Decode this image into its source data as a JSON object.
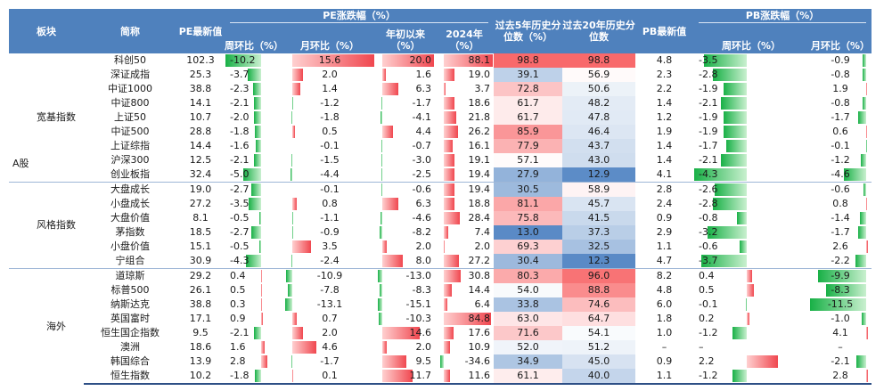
{
  "header": {
    "group_label": "板块",
    "name_label": "简称",
    "pe_latest": "PE最新值",
    "pe_change_group": "PE涨跌幅（%）",
    "pe_wow": "周环比（%）",
    "pe_mom": "月环比（%）",
    "pe_ytd": "年初以来（%）",
    "pe_2024": "2024年（%）",
    "pct_5y": "过去5年历史分位数（%）",
    "pct_20y": "过去20年历史分位数",
    "pb_latest": "PB最新值",
    "pb_change_group": "PB涨跌幅（%）",
    "pb_wow": "周环比（%）",
    "pb_mom": "月环比（%）"
  },
  "market_label": "A股",
  "groups": [
    "宽基指数",
    "风格指数",
    "海外"
  ],
  "rows": [
    {
      "group": 0,
      "name": "科创50",
      "pe": "102.3",
      "wow": -10.2,
      "mom": 15.6,
      "ytd": 20.0,
      "y2024": 88.1,
      "p5": 98.8,
      "p20": 98.8,
      "pb": "4.8",
      "pbw": -3.5,
      "pbm": -0.9
    },
    {
      "group": 0,
      "name": "深证成指",
      "pe": "25.3",
      "wow": -3.7,
      "mom": 2.0,
      "ytd": 1.6,
      "y2024": 19.0,
      "p5": 39.1,
      "p20": 56.9,
      "pb": "2.3",
      "pbw": -2.8,
      "pbm": -0.8
    },
    {
      "group": 0,
      "name": "中证1000",
      "pe": "38.8",
      "wow": -2.3,
      "mom": 1.4,
      "ytd": 6.3,
      "y2024": 3.7,
      "p5": 72.8,
      "p20": 50.6,
      "pb": "2.2",
      "pbw": -1.9,
      "pbm": 1.9
    },
    {
      "group": 0,
      "name": "中证800",
      "pe": "14.1",
      "wow": -2.1,
      "mom": -1.2,
      "ytd": -1.7,
      "y2024": 18.6,
      "p5": 61.7,
      "p20": 48.2,
      "pb": "1.4",
      "pbw": -2.1,
      "pbm": -0.8
    },
    {
      "group": 0,
      "name": "上证50",
      "pe": "10.7",
      "wow": -2.0,
      "mom": -1.8,
      "ytd": -4.1,
      "y2024": 21.8,
      "p5": 61.7,
      "p20": 47.8,
      "pb": "1.2",
      "pbw": -1.9,
      "pbm": -1.7
    },
    {
      "group": 0,
      "name": "中证500",
      "pe": "28.8",
      "wow": -1.8,
      "mom": 0.5,
      "ytd": 4.4,
      "y2024": 26.2,
      "p5": 85.9,
      "p20": 46.4,
      "pb": "1.9",
      "pbw": -1.9,
      "pbm": 0.6
    },
    {
      "group": 0,
      "name": "上证综指",
      "pe": "14.4",
      "wow": -1.6,
      "mom": -0.1,
      "ytd": -0.7,
      "y2024": 16.1,
      "p5": 77.9,
      "p20": 43.7,
      "pb": "1.4",
      "pbw": -1.7,
      "pbm": -0.1
    },
    {
      "group": 0,
      "name": "沪深300",
      "pe": "12.5",
      "wow": -2.1,
      "mom": -1.5,
      "ytd": -3.0,
      "y2024": 19.1,
      "p5": 57.1,
      "p20": 43.0,
      "pb": "1.4",
      "pbw": -2.1,
      "pbm": -1.2
    },
    {
      "group": 0,
      "name": "创业板指",
      "pe": "32.4",
      "wow": -5.0,
      "mom": -4.4,
      "ytd": -2.5,
      "y2024": 19.4,
      "p5": 27.9,
      "p20": 12.9,
      "pb": "4.1",
      "pbw": -4.3,
      "pbm": -4.6
    },
    {
      "group": 1,
      "name": "大盘成长",
      "pe": "19.0",
      "wow": -2.7,
      "mom": -0.1,
      "ytd": -0.6,
      "y2024": 19.4,
      "p5": 30.5,
      "p20": 58.9,
      "pb": "2.8",
      "pbw": -2.6,
      "pbm": -0.6
    },
    {
      "group": 1,
      "name": "小盘成长",
      "pe": "27.2",
      "wow": -3.5,
      "mom": 0.8,
      "ytd": 6.3,
      "y2024": 18.8,
      "p5": 81.1,
      "p20": 45.7,
      "pb": "2.4",
      "pbw": -2.8,
      "pbm": 0.8
    },
    {
      "group": 1,
      "name": "大盘价值",
      "pe": "8.1",
      "wow": -0.5,
      "mom": -1.1,
      "ytd": -4.6,
      "y2024": 28.4,
      "p5": 75.8,
      "p20": 41.5,
      "pb": "0.9",
      "pbw": -0.8,
      "pbm": -1.4
    },
    {
      "group": 1,
      "name": "茅指数",
      "pe": "18.5",
      "wow": -2.7,
      "mom": -0.9,
      "ytd": -8.2,
      "y2024": 7.4,
      "p5": 13.0,
      "p20": 37.3,
      "pb": "2.9",
      "pbw": -3.2,
      "pbm": -1.7
    },
    {
      "group": 1,
      "name": "小盘价值",
      "pe": "15.1",
      "wow": -0.5,
      "mom": 3.5,
      "ytd": 2.0,
      "y2024": 2.0,
      "p5": 69.3,
      "p20": 32.5,
      "pb": "1.1",
      "pbw": -0.6,
      "pbm": 2.6
    },
    {
      "group": 1,
      "name": "宁组合",
      "pe": "30.9",
      "wow": -4.3,
      "mom": -2.4,
      "ytd": 8.0,
      "y2024": 27.2,
      "p5": 30.4,
      "p20": 12.3,
      "pb": "4.7",
      "pbw": -3.7,
      "pbm": -2.2
    },
    {
      "group": 2,
      "name": "道琼斯",
      "pe": "29.2",
      "wow": 0.4,
      "mom": -10.9,
      "ytd": -13.0,
      "y2024": 30.8,
      "p5": 80.3,
      "p20": 96.0,
      "pb": "8.2",
      "pbw": 0.4,
      "pbm": -9.9
    },
    {
      "group": 2,
      "name": "标普500",
      "pe": "26.1",
      "wow": 0.5,
      "mom": -7.8,
      "ytd": -8.3,
      "y2024": 14.4,
      "p5": 54.0,
      "p20": 88.8,
      "pb": "4.8",
      "pbw": 0.5,
      "pbm": -8.3
    },
    {
      "group": 2,
      "name": "纳斯达克",
      "pe": "38.8",
      "wow": 0.3,
      "mom": -13.1,
      "ytd": -15.1,
      "y2024": 6.4,
      "p5": 33.8,
      "p20": 74.6,
      "pb": "6.0",
      "pbw": -0.1,
      "pbm": -11.5
    },
    {
      "group": 2,
      "name": "英国富时",
      "pe": "17.1",
      "wow": 0.9,
      "mom": 0.7,
      "ytd": -10.3,
      "y2024": 84.8,
      "p5": 63.0,
      "p20": 64.7,
      "pb": "1.8",
      "pbw": 0.2,
      "pbm": -1.0
    },
    {
      "group": 2,
      "name": "恒生国企指数",
      "pe": "9.5",
      "wow": -2.1,
      "mom": 2.0,
      "ytd": 14.6,
      "y2024": 17.6,
      "p5": 71.6,
      "p20": 54.1,
      "pb": "1.0",
      "pbw": -1.2,
      "pbm": 4.1
    },
    {
      "group": 2,
      "name": "澳洲",
      "pe": "18.6",
      "wow": 1.6,
      "mom": 4.6,
      "ytd": 2.0,
      "y2024": 10.9,
      "p5": 52.0,
      "p20": 51.2,
      "pb": "–",
      "pbw": null,
      "pbm": null
    },
    {
      "group": 2,
      "name": "韩国综合",
      "pe": "13.9",
      "wow": 2.8,
      "mom": -1.7,
      "ytd": 9.5,
      "y2024": -34.6,
      "p5": 34.9,
      "p20": 45.0,
      "pb": "0.9",
      "pbw": 2.2,
      "pbm": -2.1
    },
    {
      "group": 2,
      "name": "恒生指数",
      "pe": "10.2",
      "wow": -1.8,
      "mom": 0.1,
      "ytd": 11.7,
      "y2024": 11.6,
      "p5": 61.1,
      "p20": 40.0,
      "pb": "1.1",
      "pbw": -1.2,
      "pbm": 2.8
    }
  ],
  "colors": {
    "header_bg": "#4f81bd",
    "bar_positive": "#f0474f",
    "bar_negative": "#18b046",
    "heat_high": "#f8696b",
    "heat_mid": "#ffffff",
    "heat_low": "#5a8ac6"
  }
}
